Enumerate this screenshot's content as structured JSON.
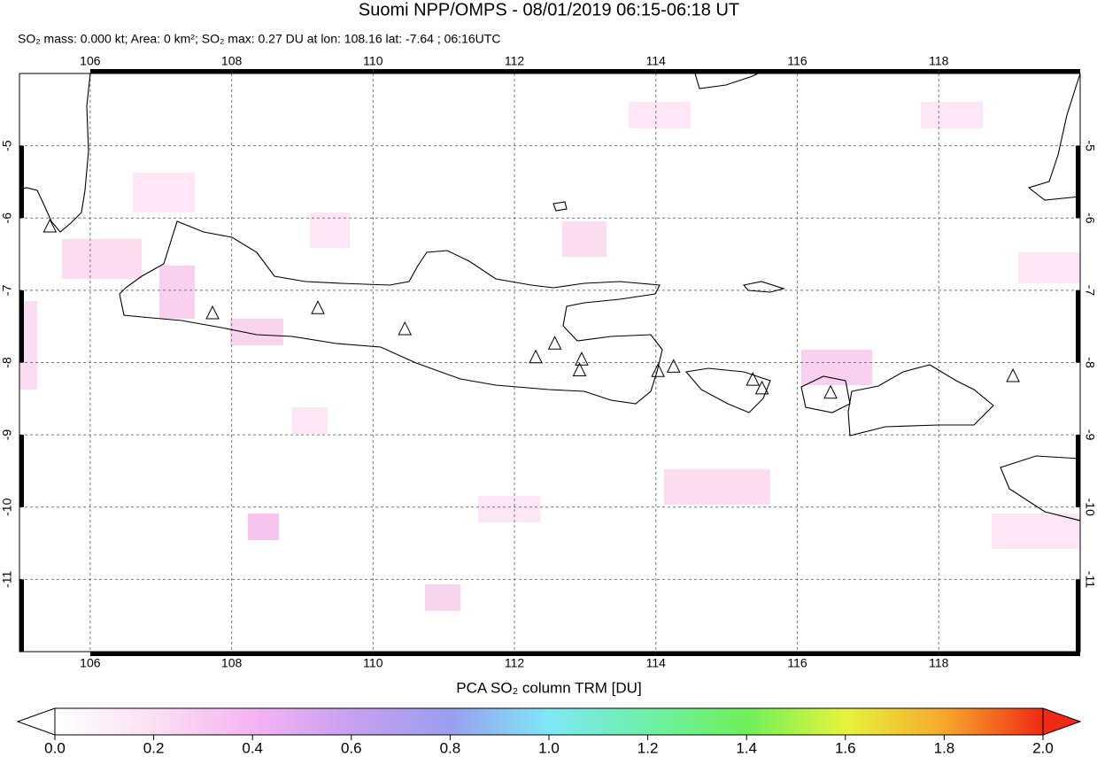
{
  "chart_data": {
    "type": "map",
    "title": "Suomi NPP/OMPS - 08/01/2019 06:15-06:18 UT",
    "subtitle": "SO₂ mass: 0.000 kt; Area: 0 km²; SO₂ max: 0.27 DU at lon: 108.16 lat: -7.64 ; 06:16UTC",
    "xlim": [
      105,
      120
    ],
    "ylim": [
      -12,
      -4
    ],
    "xticks": [
      106,
      108,
      110,
      112,
      114,
      116,
      118
    ],
    "yticks": [
      -5,
      -6,
      -7,
      -8,
      -9,
      -10,
      -11
    ],
    "grid": true,
    "volcanoes": {
      "lon": [
        105.43,
        107.73,
        109.22,
        110.45,
        112.3,
        112.57,
        112.95,
        112.92,
        114.03,
        114.25,
        115.37,
        115.5,
        116.47,
        119.05
      ],
      "lat": [
        -6.12,
        -7.32,
        -7.25,
        -7.54,
        -7.93,
        -7.74,
        -7.96,
        -8.11,
        -8.12,
        -8.06,
        -8.24,
        -8.36,
        -8.42,
        -8.19
      ]
    },
    "colorbar": {
      "label": "PCA SO₂ column TRM [DU]",
      "ticks": [
        {
          "value": 0.0,
          "label": "0.0"
        },
        {
          "value": 0.2,
          "label": "0.2"
        },
        {
          "value": 0.4,
          "label": "0.4"
        },
        {
          "value": 0.6,
          "label": "0.6"
        },
        {
          "value": 0.8,
          "label": "0.8"
        },
        {
          "value": 1.0,
          "label": "1.0"
        },
        {
          "value": 1.2,
          "label": "1.2"
        },
        {
          "value": 1.4,
          "label": "1.4"
        },
        {
          "value": 1.6,
          "label": "1.6"
        },
        {
          "value": 1.8,
          "label": "1.8"
        },
        {
          "value": 2.0,
          "label": "2.0"
        }
      ]
    }
  }
}
